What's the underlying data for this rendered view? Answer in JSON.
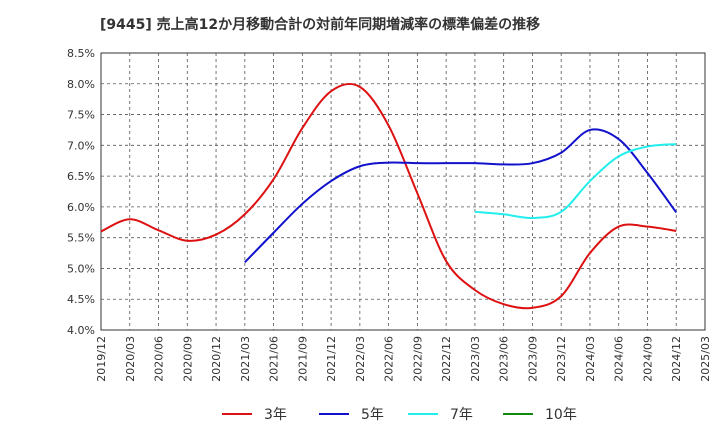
{
  "chart_data": {
    "type": "line",
    "title": "[9445]  売上高12か月移動合計の対前年同期増減率の標準偏差の推移",
    "xlabel": "",
    "ylabel": "",
    "x": [
      "2019/12",
      "2020/03",
      "2020/06",
      "2020/09",
      "2020/12",
      "2021/03",
      "2021/06",
      "2021/09",
      "2021/12",
      "2022/03",
      "2022/06",
      "2022/09",
      "2022/12",
      "2023/03",
      "2023/06",
      "2023/09",
      "2023/12",
      "2024/03",
      "2024/06",
      "2024/09",
      "2024/12",
      "2025/03"
    ],
    "ylim": [
      4.0,
      8.5
    ],
    "yticks": [
      "4.0%",
      "4.5%",
      "5.0%",
      "5.5%",
      "6.0%",
      "6.5%",
      "7.0%",
      "7.5%",
      "8.0%",
      "8.5%"
    ],
    "grid": true,
    "legend_position": "bottom",
    "series": [
      {
        "name": "3年",
        "color": "#dd1111",
        "values": [
          5.6,
          5.8,
          5.62,
          5.45,
          5.55,
          5.88,
          6.45,
          7.28,
          7.88,
          7.95,
          7.32,
          6.22,
          5.12,
          4.65,
          4.42,
          4.36,
          4.55,
          5.25,
          5.68,
          5.68,
          5.61,
          null
        ]
      },
      {
        "name": "5年",
        "color": "#1111cc",
        "values": [
          null,
          null,
          null,
          null,
          null,
          5.1,
          5.58,
          6.05,
          6.42,
          6.66,
          6.72,
          6.71,
          6.71,
          6.71,
          6.69,
          6.71,
          6.88,
          7.25,
          7.1,
          6.55,
          5.91,
          null
        ]
      },
      {
        "name": "7年",
        "color": "#22eeee",
        "values": [
          null,
          null,
          null,
          null,
          null,
          null,
          null,
          null,
          null,
          null,
          null,
          null,
          null,
          5.92,
          5.88,
          5.82,
          5.92,
          6.42,
          6.82,
          6.98,
          7.02,
          null
        ]
      },
      {
        "name": "10年",
        "color": "#118811",
        "values": [
          null,
          null,
          null,
          null,
          null,
          null,
          null,
          null,
          null,
          null,
          null,
          null,
          null,
          null,
          null,
          null,
          null,
          null,
          null,
          null,
          null,
          null
        ]
      }
    ]
  }
}
